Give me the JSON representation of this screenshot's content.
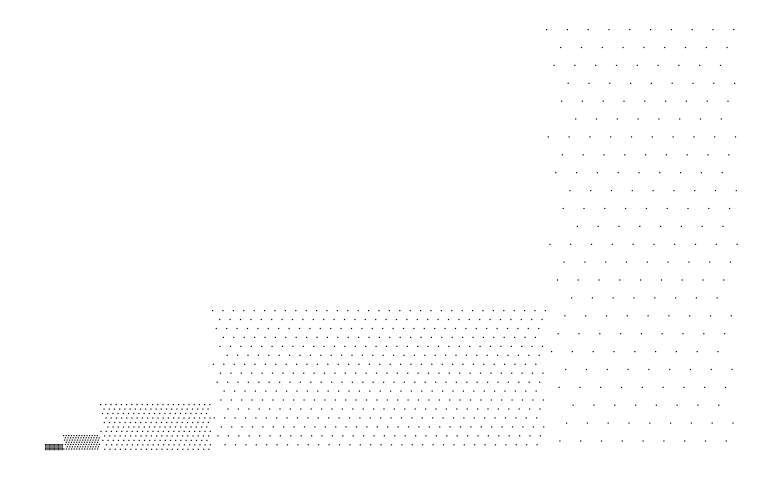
{
  "diagram": {
    "background_color": "#ffffff",
    "dot_color": "#000000",
    "blocks": [
      {
        "name": "block-1",
        "relative_density": 64
      },
      {
        "name": "block-2",
        "relative_density": 16
      },
      {
        "name": "block-3",
        "relative_density": 4
      },
      {
        "name": "block-4",
        "relative_density": 1
      }
    ]
  }
}
